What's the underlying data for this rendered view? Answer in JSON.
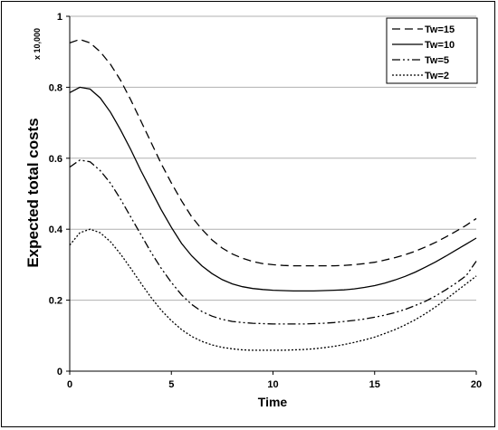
{
  "chart_data": {
    "type": "line",
    "title": "",
    "xlabel": "Time",
    "ylabel": "Expected total costs",
    "y_multiplier_label": "x 10,000",
    "xlim": [
      0,
      20
    ],
    "ylim": [
      0,
      1
    ],
    "x_ticks": [
      0,
      5,
      10,
      15,
      20
    ],
    "y_ticks": [
      0,
      0.2,
      0.4,
      0.6,
      0.8,
      1
    ],
    "y_tick_labels": [
      "0",
      "0.2",
      "0.4",
      "0.6",
      "0.8",
      "1"
    ],
    "grid": "horizontal",
    "legend_position": "top-right",
    "x": [
      0,
      0.5,
      1,
      1.5,
      2,
      2.5,
      3,
      3.5,
      4,
      4.5,
      5,
      5.5,
      6,
      6.5,
      7,
      7.5,
      8,
      8.5,
      9,
      9.5,
      10,
      10.5,
      11,
      11.5,
      12,
      12.5,
      13,
      13.5,
      14,
      14.5,
      15,
      15.5,
      16,
      16.5,
      17,
      17.5,
      18,
      18.5,
      19,
      19.5,
      20
    ],
    "series": [
      {
        "name": "Tw=15",
        "dash": "dashed",
        "values": [
          0.925,
          0.935,
          0.925,
          0.9,
          0.865,
          0.82,
          0.765,
          0.705,
          0.645,
          0.585,
          0.53,
          0.48,
          0.435,
          0.4,
          0.37,
          0.347,
          0.33,
          0.318,
          0.309,
          0.303,
          0.3,
          0.298,
          0.297,
          0.297,
          0.297,
          0.297,
          0.297,
          0.298,
          0.3,
          0.303,
          0.307,
          0.313,
          0.32,
          0.328,
          0.338,
          0.35,
          0.363,
          0.378,
          0.394,
          0.411,
          0.43
        ]
      },
      {
        "name": "Tw=10",
        "dash": "solid",
        "values": [
          0.785,
          0.8,
          0.795,
          0.77,
          0.73,
          0.68,
          0.625,
          0.565,
          0.51,
          0.455,
          0.405,
          0.36,
          0.325,
          0.297,
          0.275,
          0.258,
          0.246,
          0.238,
          0.233,
          0.23,
          0.228,
          0.227,
          0.226,
          0.226,
          0.226,
          0.227,
          0.228,
          0.229,
          0.232,
          0.236,
          0.241,
          0.248,
          0.257,
          0.267,
          0.279,
          0.293,
          0.308,
          0.324,
          0.341,
          0.358,
          0.375
        ]
      },
      {
        "name": "Tw=5",
        "dash": "dash-dot-dot",
        "values": [
          0.575,
          0.595,
          0.59,
          0.565,
          0.53,
          0.485,
          0.435,
          0.385,
          0.335,
          0.29,
          0.25,
          0.215,
          0.188,
          0.168,
          0.155,
          0.146,
          0.14,
          0.137,
          0.135,
          0.134,
          0.133,
          0.133,
          0.133,
          0.133,
          0.134,
          0.135,
          0.137,
          0.14,
          0.143,
          0.147,
          0.152,
          0.158,
          0.165,
          0.174,
          0.185,
          0.197,
          0.212,
          0.229,
          0.248,
          0.269,
          0.31
        ]
      },
      {
        "name": "Tw=2",
        "dash": "dotted",
        "values": [
          0.355,
          0.39,
          0.4,
          0.39,
          0.365,
          0.33,
          0.29,
          0.248,
          0.208,
          0.172,
          0.142,
          0.117,
          0.098,
          0.084,
          0.074,
          0.067,
          0.063,
          0.06,
          0.059,
          0.059,
          0.059,
          0.059,
          0.06,
          0.061,
          0.063,
          0.066,
          0.07,
          0.075,
          0.081,
          0.088,
          0.096,
          0.106,
          0.117,
          0.13,
          0.145,
          0.162,
          0.181,
          0.202,
          0.224,
          0.246,
          0.268
        ]
      }
    ]
  }
}
